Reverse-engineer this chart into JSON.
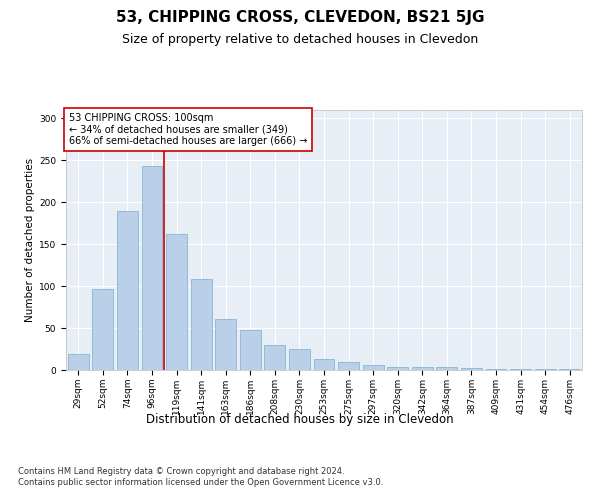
{
  "title": "53, CHIPPING CROSS, CLEVEDON, BS21 5JG",
  "subtitle": "Size of property relative to detached houses in Clevedon",
  "xlabel": "Distribution of detached houses by size in Clevedon",
  "ylabel": "Number of detached properties",
  "categories": [
    "29sqm",
    "52sqm",
    "74sqm",
    "96sqm",
    "119sqm",
    "141sqm",
    "163sqm",
    "186sqm",
    "208sqm",
    "230sqm",
    "253sqm",
    "275sqm",
    "297sqm",
    "320sqm",
    "342sqm",
    "364sqm",
    "387sqm",
    "409sqm",
    "431sqm",
    "454sqm",
    "476sqm"
  ],
  "values": [
    19,
    97,
    190,
    243,
    162,
    109,
    61,
    48,
    30,
    25,
    13,
    9,
    6,
    4,
    4,
    4,
    2,
    1,
    1,
    1,
    1
  ],
  "bar_color": "#bad0e8",
  "bar_edge_color": "#7aaed0",
  "background_color": "#e8eef6",
  "grid_color": "#ffffff",
  "annotation_box_text": "53 CHIPPING CROSS: 100sqm\n← 34% of detached houses are smaller (349)\n66% of semi-detached houses are larger (666) →",
  "annotation_box_color": "#ffffff",
  "annotation_box_edge_color": "#cc0000",
  "vline_x": 3.5,
  "vline_color": "#cc0000",
  "ylim": [
    0,
    310
  ],
  "yticks": [
    0,
    50,
    100,
    150,
    200,
    250,
    300
  ],
  "footnote": "Contains HM Land Registry data © Crown copyright and database right 2024.\nContains public sector information licensed under the Open Government Licence v3.0.",
  "title_fontsize": 11,
  "subtitle_fontsize": 9,
  "xlabel_fontsize": 8.5,
  "ylabel_fontsize": 7.5,
  "tick_fontsize": 6.5,
  "annotation_fontsize": 7,
  "footnote_fontsize": 6
}
